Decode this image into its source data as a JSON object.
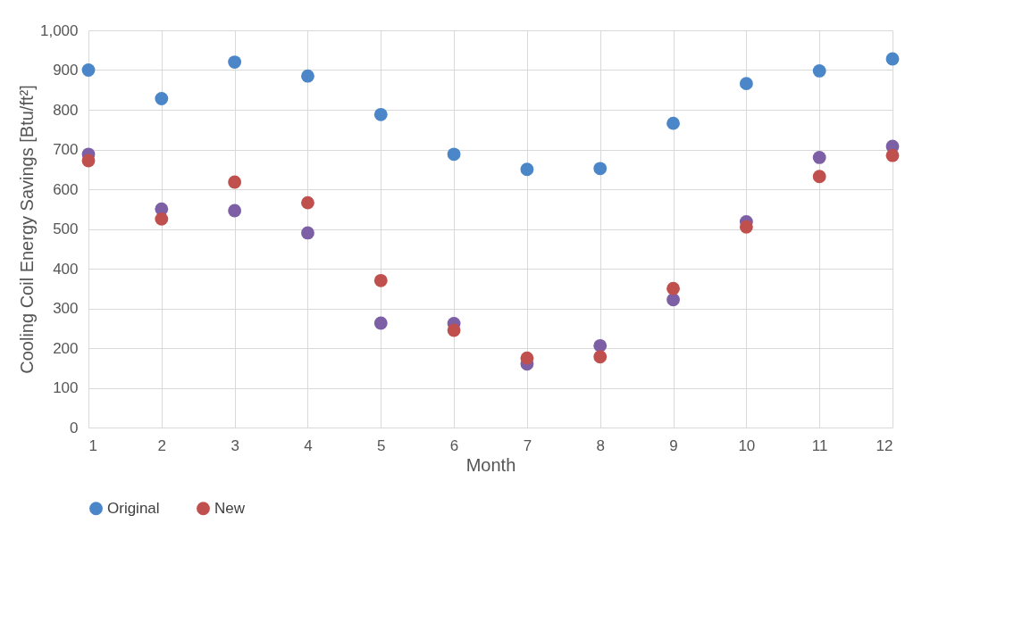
{
  "chart_data": {
    "type": "scatter",
    "xlabel": "Month",
    "ylabel": "Cooling Coil Energy Savings [Btu/ft²]",
    "x": [
      1,
      2,
      3,
      4,
      5,
      6,
      7,
      8,
      9,
      10,
      11,
      12
    ],
    "series": [
      {
        "name": "Original",
        "color": "#4a86c8",
        "values": [
          900,
          828,
          920,
          885,
          788,
          688,
          650,
          652,
          766,
          866,
          898,
          928
        ]
      },
      {
        "color": "#7d5fa6",
        "values": [
          688,
          550,
          546,
          490,
          263,
          262,
          160,
          206,
          322,
          518,
          680,
          708
        ]
      },
      {
        "name": "New",
        "color": "#c0504d",
        "values": [
          672,
          525,
          618,
          566,
          370,
          245,
          175,
          178,
          350,
          505,
          632,
          685
        ]
      }
    ],
    "xlim": [
      1,
      12
    ],
    "xticks": [
      1,
      2,
      3,
      4,
      5,
      6,
      7,
      8,
      9,
      10,
      11,
      12
    ],
    "ylim": [
      0,
      1000
    ],
    "yticks": [
      0,
      100,
      200,
      300,
      400,
      500,
      600,
      700,
      800,
      900,
      {
        "value": 1000,
        "label": "1,000"
      }
    ],
    "grid": true,
    "legend": "bottom",
    "marker": "circle"
  }
}
